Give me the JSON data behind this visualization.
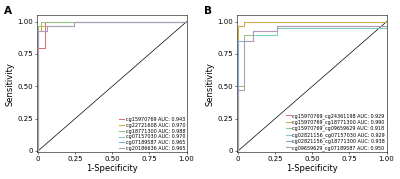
{
  "panel_A": {
    "title": "A",
    "curves": [
      {
        "label": "cg15970769 AUC: 0.943",
        "color": "#e07070",
        "points": [
          [
            0,
            0
          ],
          [
            0,
            0.8
          ],
          [
            0,
            0.8
          ],
          [
            0.05,
            0.8
          ],
          [
            0.05,
            1.0
          ],
          [
            1.0,
            1.0
          ]
        ]
      },
      {
        "label": "cg22721608 AUC: 0.970",
        "color": "#d4a843",
        "points": [
          [
            0,
            0
          ],
          [
            0,
            0.93
          ],
          [
            0.02,
            0.93
          ],
          [
            0.02,
            0.97
          ],
          [
            0.24,
            0.97
          ],
          [
            0.24,
            1.0
          ],
          [
            1.0,
            1.0
          ]
        ]
      },
      {
        "label": "cg18771300 AUC: 0.988",
        "color": "#8fc87a",
        "points": [
          [
            0,
            0
          ],
          [
            0,
            0.97
          ],
          [
            0.02,
            0.97
          ],
          [
            0.02,
            1.0
          ],
          [
            0.24,
            1.0
          ],
          [
            1.0,
            1.0
          ]
        ]
      },
      {
        "label": "cg07157030 AUC: 0.970",
        "color": "#7ecec0",
        "points": [
          [
            0,
            0
          ],
          [
            0,
            0.93
          ],
          [
            0.06,
            0.93
          ],
          [
            0.06,
            0.97
          ],
          [
            0.24,
            0.97
          ],
          [
            0.24,
            1.0
          ],
          [
            1.0,
            1.0
          ]
        ]
      },
      {
        "label": "cg07189587 AUC: 0.965",
        "color": "#7aaed6",
        "points": [
          [
            0,
            0
          ],
          [
            0,
            0.93
          ],
          [
            0.06,
            0.93
          ],
          [
            0.06,
            0.97
          ],
          [
            0.24,
            0.97
          ],
          [
            0.24,
            1.0
          ],
          [
            1.0,
            1.0
          ]
        ]
      },
      {
        "label": "cg20186636 AUC: 0.965",
        "color": "#b09abb",
        "points": [
          [
            0,
            0
          ],
          [
            0,
            0.93
          ],
          [
            0.06,
            0.93
          ],
          [
            0.06,
            0.97
          ],
          [
            0.24,
            0.97
          ],
          [
            0.24,
            1.0
          ],
          [
            1.0,
            1.0
          ]
        ]
      }
    ]
  },
  "panel_B": {
    "title": "B",
    "curves": [
      {
        "label": "cg15970769_cg24361198 AUC: 0.929",
        "color": "#e07070",
        "points": [
          [
            0,
            0
          ],
          [
            0,
            0.85
          ],
          [
            0.1,
            0.85
          ],
          [
            0.1,
            0.93
          ],
          [
            0.26,
            0.93
          ],
          [
            0.26,
            0.97
          ],
          [
            1.0,
            0.97
          ]
        ]
      },
      {
        "label": "cg15970769_cg18771300 AUC: 0.990",
        "color": "#d4a843",
        "points": [
          [
            0,
            0
          ],
          [
            0,
            0.97
          ],
          [
            0.04,
            0.97
          ],
          [
            0.04,
            1.0
          ],
          [
            1.0,
            1.0
          ]
        ]
      },
      {
        "label": "cg15970769_cg09659629 AUC: 0.918",
        "color": "#8fc87a",
        "points": [
          [
            0,
            0
          ],
          [
            0,
            0.5
          ],
          [
            0.04,
            0.5
          ],
          [
            0.04,
            0.9
          ],
          [
            0.1,
            0.9
          ],
          [
            0.1,
            0.93
          ],
          [
            0.26,
            0.93
          ],
          [
            0.26,
            0.97
          ],
          [
            1.0,
            0.97
          ]
        ]
      },
      {
        "label": "cg02821156_cg07157030 AUC: 0.929",
        "color": "#7ecec0",
        "points": [
          [
            0,
            0
          ],
          [
            0,
            0.47
          ],
          [
            0.04,
            0.47
          ],
          [
            0.04,
            0.85
          ],
          [
            0.1,
            0.85
          ],
          [
            0.1,
            0.9
          ],
          [
            0.26,
            0.9
          ],
          [
            0.26,
            0.95
          ],
          [
            1.0,
            0.95
          ]
        ]
      },
      {
        "label": "cg02821156_cg18771300 AUC: 0.938",
        "color": "#7aaed6",
        "points": [
          [
            0,
            0
          ],
          [
            0,
            0.85
          ],
          [
            0.1,
            0.85
          ],
          [
            0.1,
            0.93
          ],
          [
            0.26,
            0.93
          ],
          [
            0.26,
            0.97
          ],
          [
            1.0,
            0.97
          ]
        ]
      },
      {
        "label": "cg09659629_cg07189587 AUC: 0.950",
        "color": "#b09abb",
        "points": [
          [
            0,
            0
          ],
          [
            0,
            0.47
          ],
          [
            0.04,
            0.47
          ],
          [
            0.04,
            0.85
          ],
          [
            0.1,
            0.85
          ],
          [
            0.1,
            0.93
          ],
          [
            0.26,
            0.93
          ],
          [
            0.26,
            0.97
          ],
          [
            1.0,
            0.97
          ]
        ]
      }
    ]
  },
  "xlabel": "1-Specificity",
  "ylabel": "Sensitivity",
  "tick_labels": [
    "0",
    "0.25",
    "0.50",
    "0.75",
    "1.00"
  ],
  "tick_values": [
    0,
    0.25,
    0.5,
    0.75,
    1.0
  ],
  "linewidth": 0.75,
  "legend_fontsize": 3.5,
  "axis_fontsize": 5.0,
  "label_fontsize": 6.0,
  "panel_label_fontsize": 7.5
}
